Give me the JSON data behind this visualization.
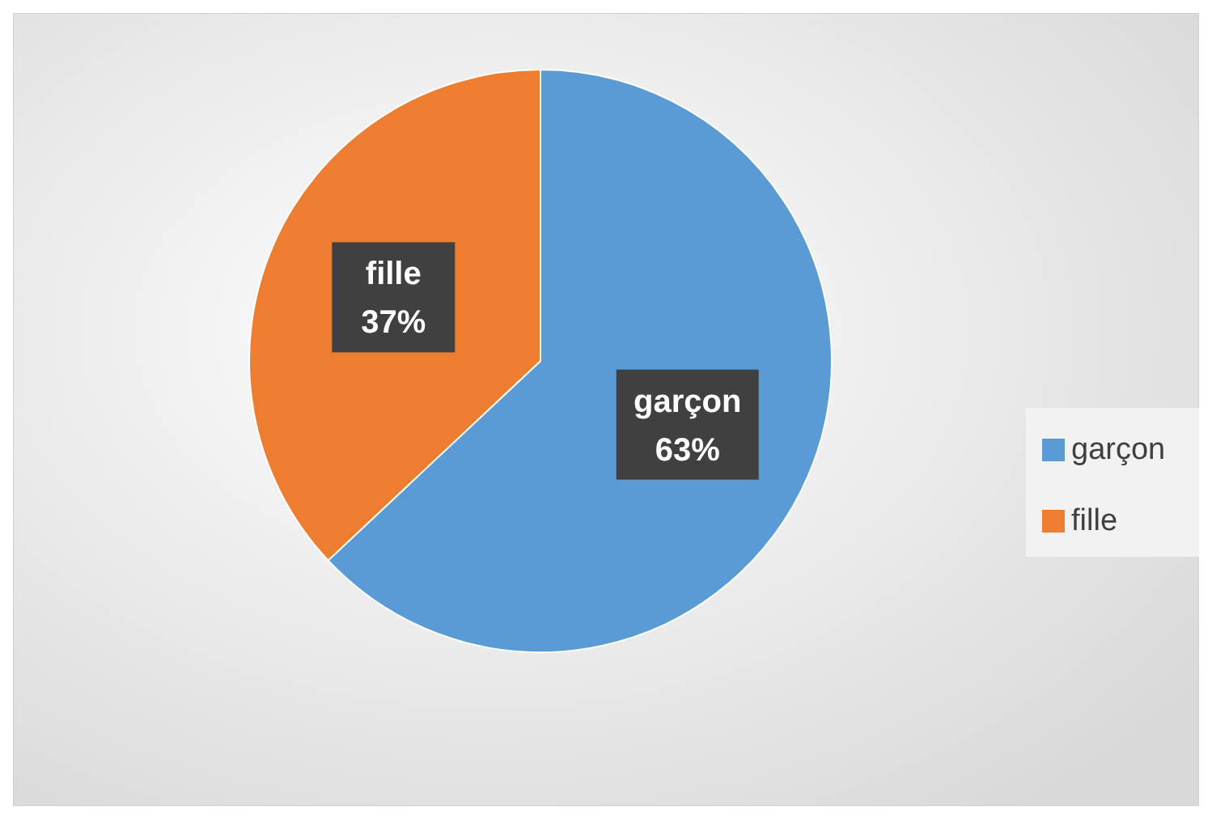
{
  "chart_data": {
    "type": "pie",
    "categories": [
      "garçon",
      "fille"
    ],
    "values": [
      63,
      37
    ],
    "colors": [
      "#5b9bd5",
      "#ed7d31"
    ],
    "value_labels": [
      "63%",
      "37%"
    ],
    "legend": "right"
  }
}
